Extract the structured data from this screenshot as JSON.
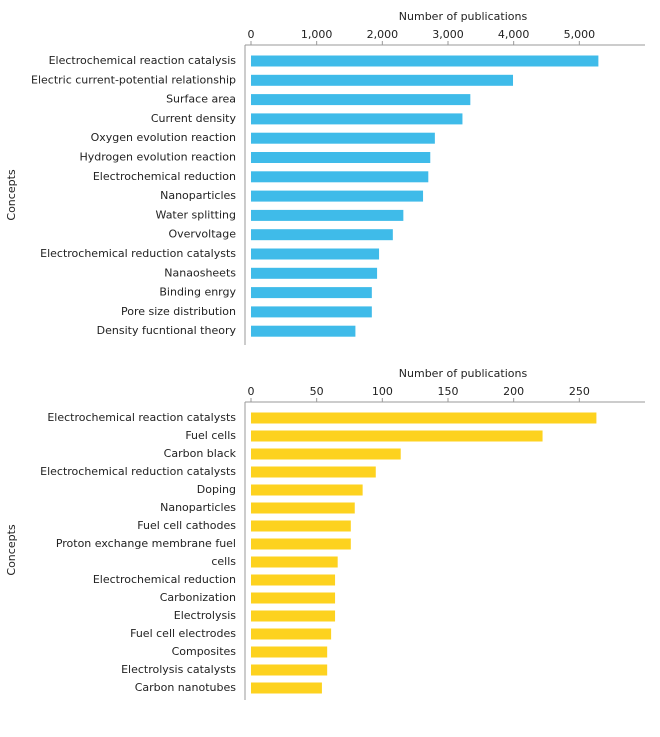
{
  "chart_data": [
    {
      "type": "barh",
      "xlabel": "Number of publications",
      "ylabel": "Concepts",
      "color": "#3fbbe9",
      "categories": [
        "Electrochemical reaction catalysis",
        "Electric current-potential relationship",
        "Surface area",
        "Current density",
        "Oxygen evolution reaction",
        "Hydrogen evolution reaction",
        "Electrochemical reduction",
        "Nanoparticles",
        "Water splitting",
        "Overvoltage",
        "Electrochemical reduction catalysts",
        "Nanaosheets",
        "Binding enrgy",
        "Pore size distribution",
        "Density fucntional theory"
      ],
      "values": [
        5290,
        3990,
        3340,
        3220,
        2800,
        2730,
        2700,
        2620,
        2320,
        2160,
        1950,
        1920,
        1840,
        1840,
        1590
      ],
      "xlim": [
        0,
        6000
      ],
      "xticks": [
        0,
        {
          "value": 1000,
          "label": "1,000"
        },
        {
          "value": 2000,
          "label": "2,000"
        },
        {
          "value": 3000,
          "label": "3,000"
        },
        {
          "value": 4000,
          "label": "4,000"
        },
        {
          "value": 5000,
          "label": "5,000"
        }
      ]
    },
    {
      "type": "barh",
      "xlabel": "Number of publications",
      "ylabel": "Concepts",
      "color": "#fdd21f",
      "categories": [
        "Electrochemical reaction catalysts",
        "Fuel cells",
        "Carbon black",
        "Electrochemical reduction catalysts",
        "Doping",
        "Nanoparticles",
        "Fuel cell cathodes",
        "Proton exchange membrane fuel",
        "cells",
        "Electrochemical reduction",
        "Carbonization",
        "Electrolysis",
        "Fuel cell electrodes",
        "Composites",
        "Electrolysis catalysts",
        "Carbon nanotubes"
      ],
      "values": [
        263,
        222,
        114,
        95,
        85,
        79,
        76,
        76,
        66,
        64,
        64,
        64,
        61,
        58,
        58,
        54
      ],
      "xlim": [
        0,
        300
      ],
      "xticks": [
        0,
        50,
        100,
        150,
        200,
        250
      ]
    }
  ]
}
